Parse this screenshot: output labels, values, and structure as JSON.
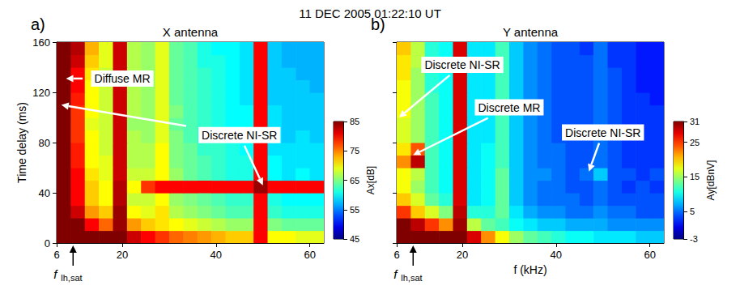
{
  "title": "11 DEC 2005 01:22:10 UT",
  "chart_data": [
    {
      "type": "heatmap",
      "panel": "a)",
      "title": "X antenna",
      "ylabel": "Time delay (ms)",
      "xlim": [
        6,
        63
      ],
      "xticks": [
        6,
        20,
        40,
        60
      ],
      "ylim": [
        0,
        160
      ],
      "yticks": [
        0,
        40,
        80,
        120,
        160
      ],
      "grid": false,
      "x_bins": [
        6,
        9,
        12,
        15,
        18,
        21,
        24,
        27,
        30,
        33,
        36,
        39,
        42,
        45,
        48,
        51,
        54,
        57,
        60,
        63
      ],
      "y_bins": [
        0,
        10,
        20,
        30,
        40,
        50,
        60,
        70,
        80,
        90,
        100,
        110,
        120,
        130,
        140,
        150,
        160
      ],
      "cells": [
        [
          85,
          85,
          85,
          85,
          85,
          82,
          80,
          78,
          76,
          75,
          74,
          73,
          72,
          72,
          80,
          70,
          70,
          69,
          69
        ],
        [
          85,
          85,
          80,
          76,
          84,
          74,
          72,
          71,
          70,
          69,
          68,
          67,
          66,
          66,
          80,
          65,
          64,
          64,
          64
        ],
        [
          85,
          82,
          74,
          72,
          84,
          70,
          69,
          71,
          67,
          66,
          65,
          64,
          63,
          63,
          80,
          62,
          61,
          61,
          61
        ],
        [
          85,
          80,
          72,
          70,
          83,
          68,
          68,
          70,
          66,
          65,
          64,
          63,
          62,
          62,
          80,
          61,
          60,
          60,
          60
        ],
        [
          85,
          80,
          72,
          70,
          83,
          70,
          78,
          80,
          80,
          80,
          80,
          80,
          80,
          80,
          84,
          80,
          80,
          80,
          80
        ],
        [
          85,
          80,
          71,
          69,
          82,
          68,
          68,
          70,
          66,
          64,
          63,
          62,
          61,
          61,
          80,
          60,
          59,
          60,
          59
        ],
        [
          85,
          79,
          70,
          69,
          82,
          67,
          67,
          70,
          65,
          64,
          63,
          62,
          61,
          61,
          80,
          60,
          59,
          59,
          59
        ],
        [
          85,
          79,
          70,
          68,
          82,
          67,
          67,
          70,
          65,
          64,
          62,
          62,
          61,
          60,
          80,
          59,
          59,
          59,
          59
        ],
        [
          85,
          78,
          70,
          68,
          82,
          67,
          66,
          69,
          65,
          63,
          62,
          61,
          60,
          60,
          80,
          59,
          58,
          59,
          58
        ],
        [
          85,
          78,
          69,
          68,
          82,
          66,
          66,
          69,
          64,
          63,
          62,
          61,
          60,
          60,
          80,
          59,
          58,
          58,
          58
        ],
        [
          85,
          78,
          70,
          68,
          82,
          67,
          66,
          69,
          65,
          63,
          62,
          61,
          60,
          60,
          80,
          59,
          58,
          58,
          58
        ],
        [
          85,
          79,
          70,
          68,
          82,
          67,
          66,
          69,
          64,
          63,
          62,
          61,
          60,
          59,
          80,
          58,
          58,
          58,
          58
        ],
        [
          85,
          80,
          70,
          68,
          82,
          67,
          66,
          69,
          64,
          63,
          62,
          61,
          60,
          59,
          80,
          58,
          58,
          58,
          57
        ],
        [
          85,
          80,
          71,
          68,
          82,
          67,
          66,
          69,
          64,
          63,
          62,
          61,
          60,
          59,
          80,
          58,
          58,
          57,
          57
        ],
        [
          85,
          82,
          72,
          69,
          82,
          67,
          66,
          69,
          64,
          63,
          61,
          61,
          60,
          59,
          80,
          58,
          57,
          57,
          57
        ],
        [
          85,
          83,
          73,
          69,
          82,
          67,
          66,
          69,
          64,
          63,
          61,
          60,
          60,
          59,
          80,
          58,
          57,
          57,
          57
        ]
      ],
      "colorbar": {
        "label": "Ax[dB]",
        "range": [
          45,
          85
        ],
        "ticks": [
          45,
          55,
          65,
          75,
          85
        ]
      },
      "annotations": [
        {
          "text": "Diffuse MR",
          "text_at": [
            20,
            131
          ],
          "points_to": [
            [
              8,
              131
            ]
          ]
        },
        {
          "text": "Discrete NI-SR",
          "text_at": [
            45,
            86
          ],
          "points_to": [
            [
              7,
              110
            ],
            [
              50,
              46
            ]
          ]
        }
      ],
      "frequency_marker": {
        "x": 9.5,
        "label": "f",
        "subscript": "lh,sat"
      }
    },
    {
      "type": "heatmap",
      "panel": "b)",
      "title": "Y antenna",
      "xlabel": "f (kHz)",
      "xlim": [
        6,
        63
      ],
      "xticks": [
        6,
        20,
        40,
        60
      ],
      "ylim": [
        0,
        160
      ],
      "yticks": [
        0,
        40,
        80,
        120,
        160
      ],
      "grid": false,
      "tick_labels": "x",
      "x_bins": [
        6,
        9,
        12,
        15,
        18,
        21,
        24,
        27,
        30,
        33,
        36,
        39,
        42,
        45,
        48,
        51,
        54,
        57,
        60,
        63
      ],
      "y_bins": [
        0,
        10,
        20,
        30,
        40,
        50,
        60,
        70,
        80,
        90,
        100,
        110,
        120,
        130,
        140,
        150,
        160
      ],
      "cells": [
        [
          31,
          31,
          31,
          31,
          31,
          28,
          22,
          18,
          15,
          13,
          12,
          11,
          10,
          10,
          9,
          9,
          9,
          8,
          8
        ],
        [
          31,
          29,
          25,
          22,
          30,
          16,
          13,
          12,
          10,
          9,
          8,
          8,
          7,
          7,
          7,
          6,
          6,
          6,
          6
        ],
        [
          25,
          20,
          17,
          14,
          29,
          11,
          11,
          13,
          9,
          7,
          6,
          6,
          5,
          5,
          6,
          5,
          5,
          4,
          4
        ],
        [
          20,
          17,
          13,
          11,
          28,
          9,
          10,
          13,
          8,
          6,
          5,
          5,
          5,
          4,
          5,
          4,
          4,
          4,
          4
        ],
        [
          18,
          15,
          12,
          10,
          28,
          9,
          10,
          13,
          8,
          6,
          5,
          5,
          4,
          4,
          5,
          4,
          3,
          4,
          3
        ],
        [
          18,
          16,
          12,
          10,
          28,
          9,
          10,
          13,
          8,
          6,
          6,
          5,
          4,
          5,
          8,
          4,
          4,
          3,
          4
        ],
        [
          22,
          29,
          12,
          10,
          28,
          9,
          10,
          12,
          8,
          6,
          5,
          5,
          4,
          4,
          5,
          4,
          3,
          3,
          3
        ],
        [
          19,
          24,
          12,
          10,
          28,
          9,
          10,
          12,
          8,
          6,
          5,
          5,
          4,
          4,
          5,
          4,
          3,
          3,
          3
        ],
        [
          17,
          15,
          12,
          10,
          28,
          9,
          9,
          12,
          8,
          6,
          5,
          4,
          4,
          4,
          5,
          4,
          3,
          3,
          3
        ],
        [
          17,
          15,
          12,
          10,
          28,
          9,
          9,
          12,
          8,
          6,
          5,
          4,
          4,
          4,
          5,
          4,
          3,
          3,
          3
        ],
        [
          18,
          15,
          12,
          10,
          28,
          9,
          9,
          12,
          8,
          6,
          5,
          4,
          4,
          4,
          5,
          4,
          3,
          3,
          3
        ],
        [
          18,
          15,
          12,
          10,
          28,
          9,
          9,
          12,
          8,
          6,
          5,
          4,
          4,
          4,
          5,
          4,
          3,
          3,
          2
        ],
        [
          18,
          15,
          11,
          10,
          28,
          9,
          9,
          12,
          8,
          6,
          5,
          4,
          4,
          4,
          5,
          4,
          3,
          2,
          2
        ],
        [
          19,
          15,
          11,
          10,
          28,
          9,
          9,
          12,
          8,
          6,
          5,
          4,
          4,
          4,
          5,
          4,
          3,
          2,
          2
        ],
        [
          19,
          16,
          11,
          10,
          28,
          9,
          9,
          12,
          8,
          6,
          5,
          4,
          4,
          4,
          5,
          3,
          3,
          2,
          2
        ],
        [
          20,
          16,
          11,
          10,
          28,
          9,
          9,
          12,
          8,
          6,
          5,
          4,
          4,
          3,
          5,
          3,
          3,
          2,
          2
        ]
      ],
      "colorbar": {
        "label": "Ay[dBnV]",
        "range": [
          -3,
          31
        ],
        "ticks": [
          -3,
          5,
          15,
          25,
          31
        ]
      },
      "annotations": [
        {
          "text": "Discrete NI-SR",
          "text_at": [
            20,
            142
          ],
          "points_to": [
            [
              6.5,
              100
            ]
          ]
        },
        {
          "text": "Discrete MR",
          "text_at": [
            30,
            108
          ],
          "points_to": [
            [
              9.5,
              70
            ]
          ]
        },
        {
          "text": "Discrete NI-SR",
          "text_at": [
            50,
            88
          ],
          "points_to": [
            [
              47,
              57
            ]
          ]
        }
      ],
      "frequency_marker": {
        "x": 9.5,
        "label": "f",
        "subscript": "lh,sat"
      }
    }
  ]
}
